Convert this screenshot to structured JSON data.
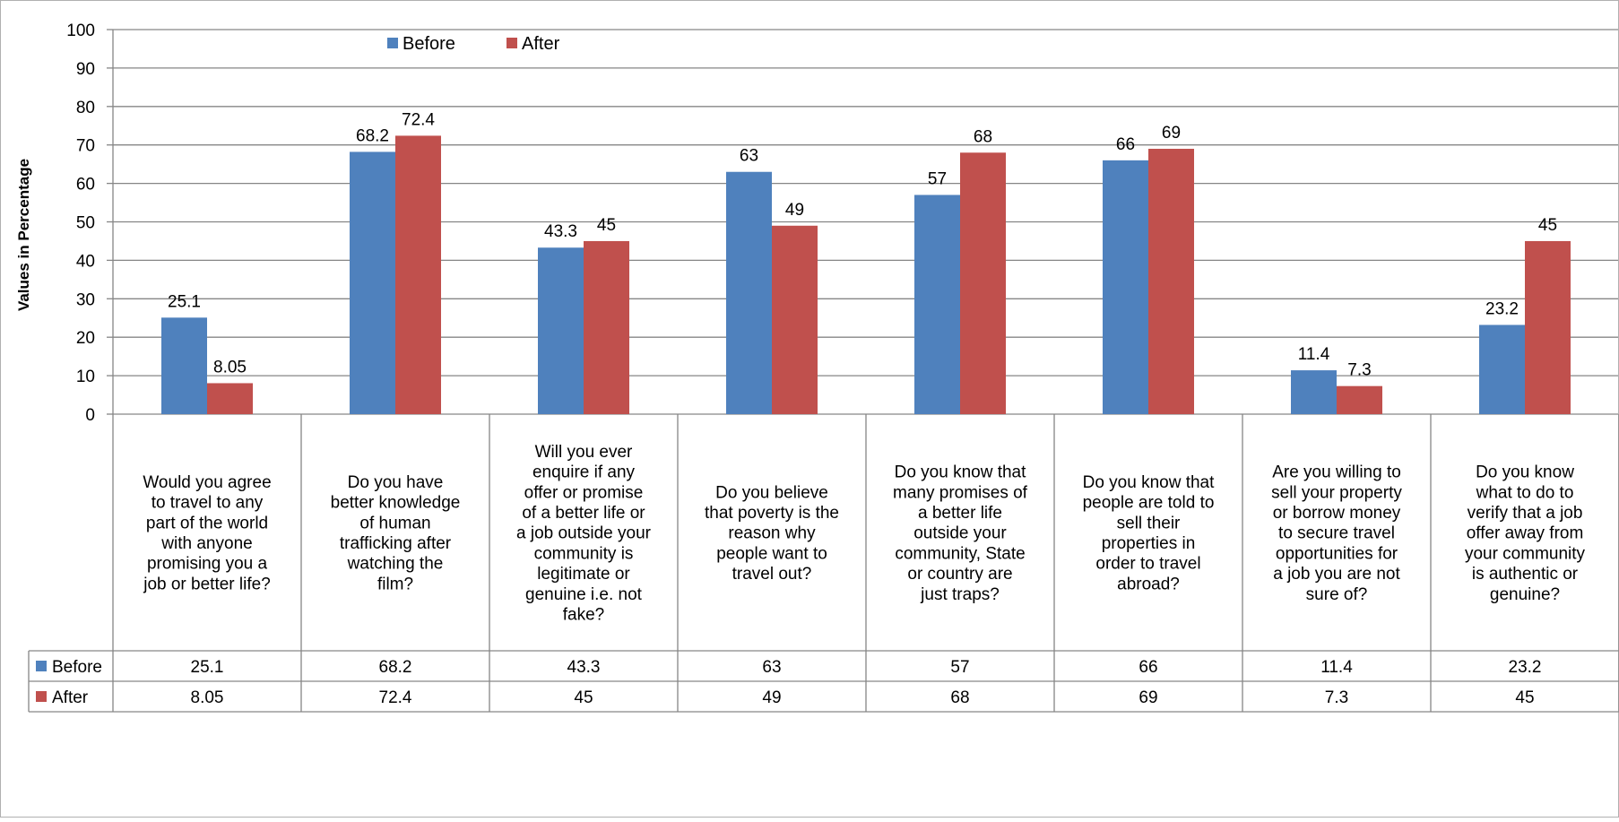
{
  "chart_data": {
    "type": "bar",
    "ylabel": "Values in Percentage",
    "ylim": [
      0,
      100
    ],
    "yticks": [
      0,
      10,
      20,
      30,
      40,
      50,
      60,
      70,
      80,
      90,
      100
    ],
    "grid": true,
    "legend_position": "top",
    "categories": [
      "Would you agree to travel to any part of the world with anyone promising you a job or better life?",
      "Do you have better knowledge of human trafficking after watching the film?",
      "Will you ever enquire if any offer or promise of a better life or a job outside your community is legitimate or genuine i.e. not fake?",
      "Do you believe that poverty is the reason why people want to travel out?",
      "Do you know that many promises of a better life outside your community, State or country are just traps?",
      "Do you know that people are told to sell their properties in order to travel abroad?",
      "Are you willing to sell your property or borrow money to secure travel opportunities for a job you are not sure of?",
      "Do you know what to do to verify that a job offer away from your community is authentic or genuine?"
    ],
    "category_lines": [
      [
        "Would you agree",
        "to travel to any",
        "part of the world",
        "with anyone",
        "promising you a",
        "job or better life?"
      ],
      [
        "Do you have",
        "better knowledge",
        "of human",
        "trafficking after",
        "watching the",
        "film?"
      ],
      [
        "Will you ever",
        "enquire if any",
        "offer or promise",
        "of a better life or",
        "a job outside your",
        "community is",
        "legitimate or",
        "genuine i.e. not",
        "fake?"
      ],
      [
        "Do you believe",
        "that poverty is the",
        "reason why",
        "people want to",
        "travel out?"
      ],
      [
        "Do you know that",
        "many promises of",
        "a better life",
        "outside your",
        "community, State",
        "or country are",
        "just traps?"
      ],
      [
        "Do you know that",
        "people are told to",
        "sell their",
        "properties in",
        "order to travel",
        "abroad?"
      ],
      [
        "Are you willing to",
        "sell your property",
        "or borrow money",
        "to secure travel",
        "opportunities for",
        "a job you are not",
        "sure of?"
      ],
      [
        "Do you know",
        "what to do to",
        "verify that a job",
        "offer away from",
        "your community",
        "is authentic or",
        "genuine?"
      ]
    ],
    "series": [
      {
        "name": "Before",
        "color": "#4F81BD",
        "values": [
          25.1,
          68.2,
          43.3,
          63,
          57,
          66,
          11.4,
          23.2
        ],
        "labels": [
          "25.1",
          "68.2",
          "43.3",
          "63",
          "57",
          "66",
          "11.4",
          "23.2"
        ]
      },
      {
        "name": "After",
        "color": "#C0504D",
        "values": [
          8.05,
          72.4,
          45,
          49,
          68,
          69,
          7.3,
          45
        ],
        "labels": [
          "8.05",
          "72.4",
          "45",
          "49",
          "68",
          "69",
          "7.3",
          "45"
        ]
      }
    ]
  }
}
